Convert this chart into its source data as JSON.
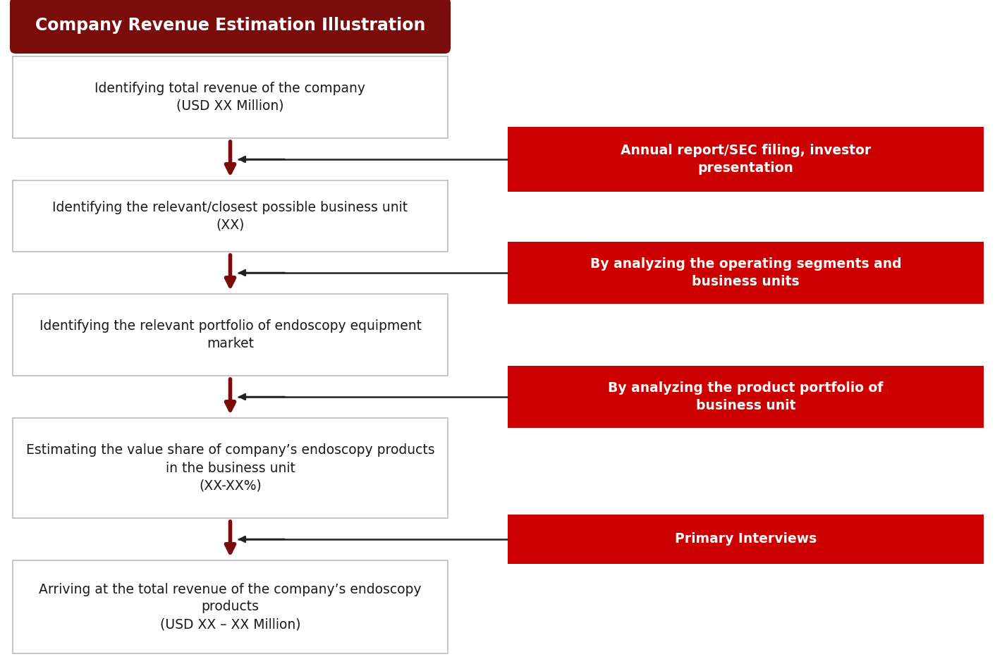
{
  "title": "Company Revenue Estimation Illustration",
  "title_bg": "#7B0C0C",
  "title_text_color": "#FFFFFF",
  "box_border_color": "#BBBBBB",
  "box_bg_color": "#FFFFFF",
  "arrow_color": "#7B0C0C",
  "red_box_color": "#CC0000",
  "red_box_text_color": "#FFFFFF",
  "left_boxes": [
    "Identifying total revenue of the company\n(USD XX Million)",
    "Identifying the relevant/closest possible business unit\n(XX)",
    "Identifying the relevant portfolio of endoscopy equipment\nmarket",
    "Estimating the value share of company’s endoscopy products\nin the business unit\n(XX-XX%)",
    "Arriving at the total revenue of the company’s endoscopy\nproducts\n(USD XX – XX Million)"
  ],
  "right_boxes": [
    "Annual report/SEC filing, investor\npresentation",
    "By analyzing the operating segments and\nbusiness units",
    "By analyzing the product portfolio of\nbusiness unit",
    "Primary Interviews"
  ],
  "fig_width": 14.11,
  "fig_height": 9.42,
  "background_color": "#FFFFFF"
}
